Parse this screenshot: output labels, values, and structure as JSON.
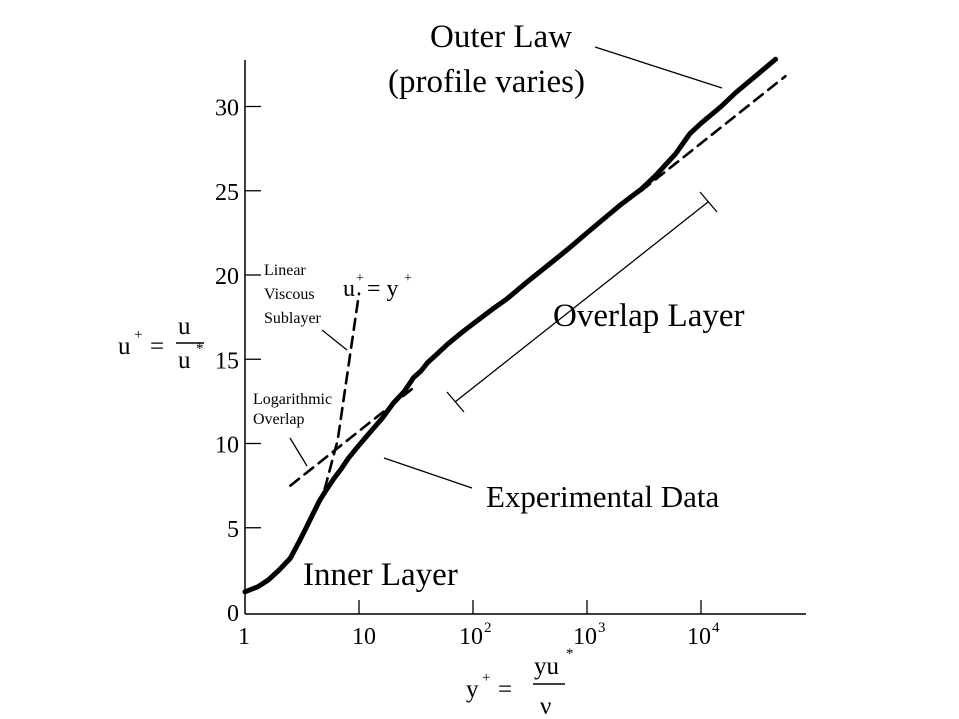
{
  "chart_data": {
    "type": "line",
    "x_scale": "log",
    "y_scale": "linear",
    "xlim": [
      1,
      70000
    ],
    "ylim": [
      0,
      33
    ],
    "xticks": [
      {
        "value": 1,
        "base": "1",
        "exp": ""
      },
      {
        "value": 10,
        "base": "10",
        "exp": ""
      },
      {
        "value": 100,
        "base": "10",
        "exp": "2"
      },
      {
        "value": 1000,
        "base": "10",
        "exp": "3"
      },
      {
        "value": 10000,
        "base": "10",
        "exp": "4"
      }
    ],
    "yticks": [
      {
        "value": 0,
        "label": "0"
      },
      {
        "value": 5,
        "label": "5"
      },
      {
        "value": 10,
        "label": "10"
      },
      {
        "value": 15,
        "label": "15"
      },
      {
        "value": 20,
        "label": "20"
      },
      {
        "value": 25,
        "label": "25"
      },
      {
        "value": 30,
        "label": "30"
      }
    ],
    "ylabel": {
      "lhs": "u",
      "lhs_sup": "+",
      "eq": "=",
      "num": "u",
      "den": "u",
      "den_sup": "*"
    },
    "xlabel": {
      "lhs": "y",
      "lhs_sup": "+",
      "eq": "=",
      "num": "yu",
      "num_sup": "*",
      "den": "ν"
    },
    "series": [
      {
        "style": "solid",
        "x": [
          1,
          1.3,
          1.6,
          2,
          2.5,
          3,
          3.5,
          4,
          4.5,
          5,
          6,
          7,
          8,
          10,
          13,
          16,
          20,
          25,
          30,
          35,
          40,
          50,
          60,
          80,
          100,
          150,
          200,
          300,
          500,
          700,
          1000,
          1500,
          2000,
          3000,
          4000,
          6000,
          8000,
          10000,
          15000,
          20000,
          30000,
          45000
        ],
        "y": [
          1.2,
          1.5,
          1.9,
          2.5,
          3.2,
          4.2,
          5.1,
          5.9,
          6.6,
          7.1,
          7.9,
          8.5,
          9.1,
          9.9,
          10.8,
          11.5,
          12.4,
          13.1,
          13.9,
          14.3,
          14.8,
          15.4,
          15.9,
          16.6,
          17.1,
          18.0,
          18.6,
          19.6,
          20.8,
          21.6,
          22.5,
          23.5,
          24.2,
          25.1,
          25.9,
          27.2,
          28.4,
          29.0,
          30.0,
          30.8,
          31.8,
          32.8
        ]
      },
      {
        "style": "dashed",
        "x": [
          2.5,
          30
        ],
        "y": [
          7.5,
          13.3
        ]
      },
      {
        "style": "dashed",
        "x": [
          5,
          6.5,
          10
        ],
        "y": [
          7.3,
          10.2,
          18.9
        ]
      },
      {
        "style": "dashed",
        "x": [
          3000,
          55000
        ],
        "y": [
          25.0,
          31.8
        ]
      }
    ],
    "annotations": [
      {
        "id": "outer_law",
        "lines": [
          "Outer Law",
          "(profile varies)"
        ]
      },
      {
        "id": "u_equals_y",
        "u": "u",
        "u_sup": "+",
        "eq": "= y",
        "y_sup": "+"
      },
      {
        "id": "viscous",
        "lines": [
          "Linear",
          "Viscous",
          "Sublayer"
        ]
      },
      {
        "id": "log_overlap",
        "lines": [
          "Logarithmic",
          "Overlap"
        ]
      },
      {
        "id": "overlap_layer",
        "lines": [
          "Overlap Layer"
        ]
      },
      {
        "id": "experimental",
        "lines": [
          "Experimental Data"
        ]
      },
      {
        "id": "inner_layer",
        "lines": [
          "Inner Layer"
        ]
      }
    ]
  }
}
